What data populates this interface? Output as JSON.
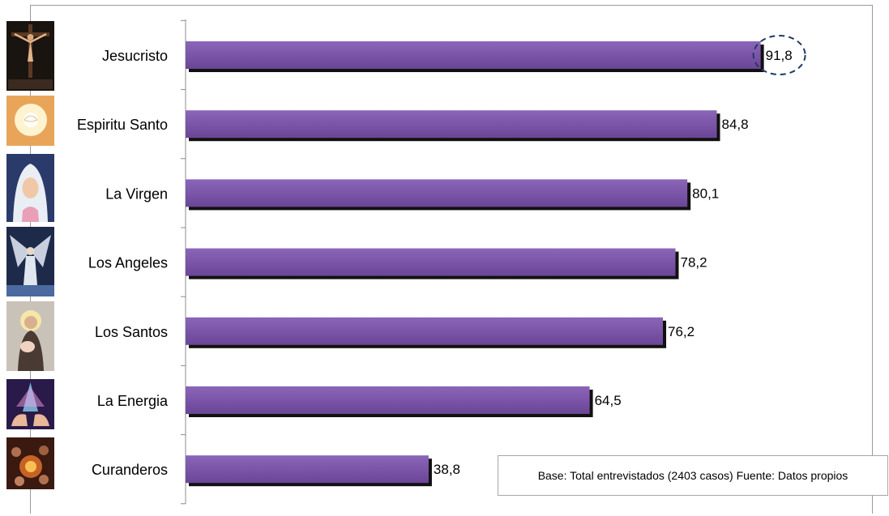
{
  "chart_data": {
    "type": "bar",
    "orientation": "horizontal",
    "categories": [
      "Jesucristo",
      "Espiritu Santo",
      "La Virgen",
      "Los Angeles",
      "Los Santos",
      "La Energia",
      "Curanderos"
    ],
    "values": [
      91.8,
      84.8,
      80.1,
      78.2,
      76.2,
      64.5,
      38.8
    ],
    "value_labels": [
      "91,8",
      "84,8",
      "80,1",
      "78,2",
      "76,2",
      "64,5",
      "38,8"
    ],
    "xlim": [
      0,
      100
    ],
    "grid": false,
    "highlight": "Jesucristo",
    "bar_color": "#7b55a8",
    "shadow_color": "#111111"
  },
  "thumbnails": [
    {
      "category": "Jesucristo",
      "icon": "crucifix-icon"
    },
    {
      "category": "Espiritu Santo",
      "icon": "dove-light-icon"
    },
    {
      "category": "La Virgen",
      "icon": "virgin-mary-icon"
    },
    {
      "category": "Los Angeles",
      "icon": "angel-icon"
    },
    {
      "category": "Los Santos",
      "icon": "saint-icon"
    },
    {
      "category": "La Energia",
      "icon": "energy-hands-icon"
    },
    {
      "category": "Curanderos",
      "icon": "healers-icon"
    }
  ],
  "note": "Base: Total entrevistados (2403 casos)  Fuente: Datos propios"
}
